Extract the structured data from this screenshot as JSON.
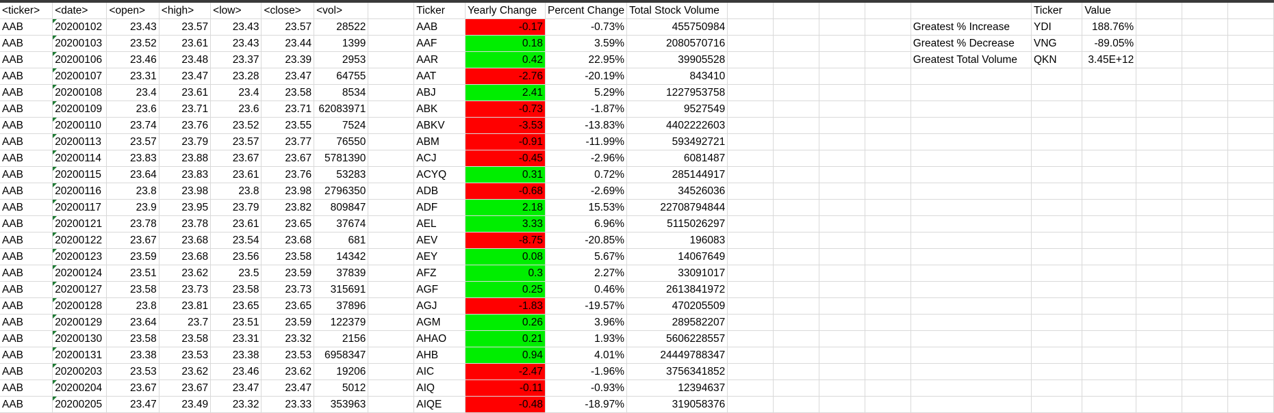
{
  "raw_headers": [
    "<ticker>",
    "<date>",
    "<open>",
    "<high>",
    "<low>",
    "<close>",
    "<vol>"
  ],
  "summary_headers": [
    "Ticker",
    "Yearly Change",
    "Percent Change",
    "Total Stock Volume"
  ],
  "greatest_headers": [
    "",
    "Ticker",
    "Value"
  ],
  "colors": {
    "positive_fill": "#00ee00",
    "negative_fill": "#ff0000",
    "date_marker": "#1e7b34",
    "gridline": "#d9d9d9"
  },
  "rows": [
    {
      "raw": [
        "AAB",
        "20200102",
        "23.43",
        "23.57",
        "23.43",
        "23.57",
        "28522"
      ],
      "summary": [
        "AAB",
        "-0.17",
        "-0.73%",
        "455750984"
      ],
      "sign": "neg"
    },
    {
      "raw": [
        "AAB",
        "20200103",
        "23.52",
        "23.61",
        "23.43",
        "23.44",
        "1399"
      ],
      "summary": [
        "AAF",
        "0.18",
        "3.59%",
        "2080570716"
      ],
      "sign": "pos"
    },
    {
      "raw": [
        "AAB",
        "20200106",
        "23.46",
        "23.48",
        "23.37",
        "23.39",
        "2953"
      ],
      "summary": [
        "AAR",
        "0.42",
        "22.95%",
        "39905528"
      ],
      "sign": "pos"
    },
    {
      "raw": [
        "AAB",
        "20200107",
        "23.31",
        "23.47",
        "23.28",
        "23.47",
        "64755"
      ],
      "summary": [
        "AAT",
        "-2.76",
        "-20.19%",
        "843410"
      ],
      "sign": "neg"
    },
    {
      "raw": [
        "AAB",
        "20200108",
        "23.4",
        "23.61",
        "23.4",
        "23.58",
        "8534"
      ],
      "summary": [
        "ABJ",
        "2.41",
        "5.29%",
        "1227953758"
      ],
      "sign": "pos"
    },
    {
      "raw": [
        "AAB",
        "20200109",
        "23.6",
        "23.71",
        "23.6",
        "23.71",
        "62083971"
      ],
      "summary": [
        "ABK",
        "-0.73",
        "-1.87%",
        "9527549"
      ],
      "sign": "neg"
    },
    {
      "raw": [
        "AAB",
        "20200110",
        "23.74",
        "23.76",
        "23.52",
        "23.55",
        "7524"
      ],
      "summary": [
        "ABKV",
        "-3.53",
        "-13.83%",
        "4402222603"
      ],
      "sign": "neg"
    },
    {
      "raw": [
        "AAB",
        "20200113",
        "23.57",
        "23.79",
        "23.57",
        "23.77",
        "76550"
      ],
      "summary": [
        "ABM",
        "-0.91",
        "-11.99%",
        "593492721"
      ],
      "sign": "neg"
    },
    {
      "raw": [
        "AAB",
        "20200114",
        "23.83",
        "23.88",
        "23.67",
        "23.67",
        "5781390"
      ],
      "summary": [
        "ACJ",
        "-0.45",
        "-2.96%",
        "6081487"
      ],
      "sign": "neg"
    },
    {
      "raw": [
        "AAB",
        "20200115",
        "23.64",
        "23.83",
        "23.61",
        "23.76",
        "53283"
      ],
      "summary": [
        "ACYQ",
        "0.31",
        "0.72%",
        "285144917"
      ],
      "sign": "pos"
    },
    {
      "raw": [
        "AAB",
        "20200116",
        "23.8",
        "23.98",
        "23.8",
        "23.98",
        "2796350"
      ],
      "summary": [
        "ADB",
        "-0.68",
        "-2.69%",
        "34526036"
      ],
      "sign": "neg"
    },
    {
      "raw": [
        "AAB",
        "20200117",
        "23.9",
        "23.95",
        "23.79",
        "23.82",
        "809847"
      ],
      "summary": [
        "ADF",
        "2.18",
        "15.53%",
        "22708794844"
      ],
      "sign": "pos"
    },
    {
      "raw": [
        "AAB",
        "20200121",
        "23.78",
        "23.78",
        "23.61",
        "23.65",
        "37674"
      ],
      "summary": [
        "AEL",
        "3.33",
        "6.96%",
        "5115026297"
      ],
      "sign": "pos"
    },
    {
      "raw": [
        "AAB",
        "20200122",
        "23.67",
        "23.68",
        "23.54",
        "23.68",
        "681"
      ],
      "summary": [
        "AEV",
        "-8.75",
        "-20.85%",
        "196083"
      ],
      "sign": "neg"
    },
    {
      "raw": [
        "AAB",
        "20200123",
        "23.59",
        "23.68",
        "23.56",
        "23.58",
        "14342"
      ],
      "summary": [
        "AEY",
        "0.08",
        "5.67%",
        "14067649"
      ],
      "sign": "pos"
    },
    {
      "raw": [
        "AAB",
        "20200124",
        "23.51",
        "23.62",
        "23.5",
        "23.59",
        "37839"
      ],
      "summary": [
        "AFZ",
        "0.3",
        "2.27%",
        "33091017"
      ],
      "sign": "pos"
    },
    {
      "raw": [
        "AAB",
        "20200127",
        "23.58",
        "23.73",
        "23.58",
        "23.73",
        "315691"
      ],
      "summary": [
        "AGF",
        "0.25",
        "0.46%",
        "2613841972"
      ],
      "sign": "pos"
    },
    {
      "raw": [
        "AAB",
        "20200128",
        "23.8",
        "23.81",
        "23.65",
        "23.65",
        "37896"
      ],
      "summary": [
        "AGJ",
        "-1.83",
        "-19.57%",
        "470205509"
      ],
      "sign": "neg"
    },
    {
      "raw": [
        "AAB",
        "20200129",
        "23.64",
        "23.7",
        "23.51",
        "23.59",
        "122379"
      ],
      "summary": [
        "AGM",
        "0.26",
        "3.96%",
        "289582207"
      ],
      "sign": "pos"
    },
    {
      "raw": [
        "AAB",
        "20200130",
        "23.58",
        "23.58",
        "23.31",
        "23.32",
        "2156"
      ],
      "summary": [
        "AHAO",
        "0.21",
        "1.93%",
        "5606228557"
      ],
      "sign": "pos"
    },
    {
      "raw": [
        "AAB",
        "20200131",
        "23.38",
        "23.53",
        "23.38",
        "23.53",
        "6958347"
      ],
      "summary": [
        "AHB",
        "0.94",
        "4.01%",
        "24449788347"
      ],
      "sign": "pos"
    },
    {
      "raw": [
        "AAB",
        "20200203",
        "23.53",
        "23.62",
        "23.46",
        "23.62",
        "19206"
      ],
      "summary": [
        "AIC",
        "-2.47",
        "-1.96%",
        "3756341852"
      ],
      "sign": "neg"
    },
    {
      "raw": [
        "AAB",
        "20200204",
        "23.67",
        "23.67",
        "23.47",
        "23.47",
        "5012"
      ],
      "summary": [
        "AIQ",
        "-0.11",
        "-0.93%",
        "12394637"
      ],
      "sign": "neg"
    },
    {
      "raw": [
        "AAB",
        "20200205",
        "23.47",
        "23.49",
        "23.32",
        "23.33",
        "353963"
      ],
      "summary": [
        "AIQE",
        "-0.48",
        "-18.97%",
        "319058376"
      ],
      "sign": "neg"
    }
  ],
  "greatest": [
    {
      "label": "Greatest % Increase",
      "ticker": "YDI",
      "value": "188.76%"
    },
    {
      "label": "Greatest % Decrease",
      "ticker": "VNG",
      "value": "-89.05%"
    },
    {
      "label": "Greatest Total Volume",
      "ticker": "QKN",
      "value": "3.45E+12"
    }
  ]
}
